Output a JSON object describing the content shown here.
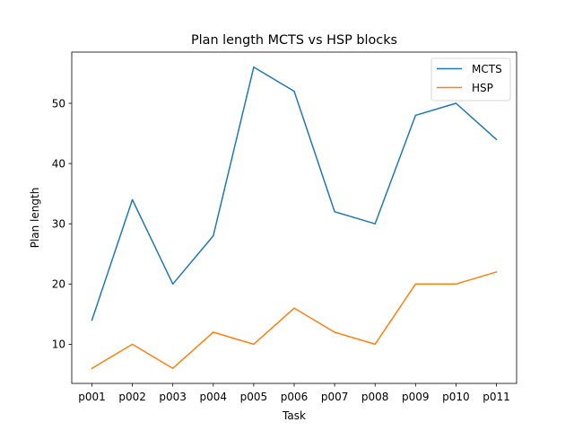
{
  "chart_data": {
    "type": "line",
    "title": "Plan length MCTS vs HSP blocks",
    "xlabel": "Task",
    "ylabel": "Plan length",
    "categories": [
      "p001",
      "p002",
      "p003",
      "p004",
      "p005",
      "p006",
      "p007",
      "p008",
      "p009",
      "p010",
      "p011"
    ],
    "series": [
      {
        "name": "MCTS",
        "color": "#1f77b4",
        "values": [
          14,
          34,
          20,
          28,
          56,
          52,
          32,
          30,
          48,
          50,
          44
        ]
      },
      {
        "name": "HSP",
        "color": "#ff7f0e",
        "values": [
          6,
          10,
          6,
          12,
          10,
          16,
          12,
          10,
          20,
          20,
          22
        ]
      }
    ],
    "ylim": [
      3.5,
      58.5
    ],
    "yticks": [
      10,
      20,
      30,
      40,
      50
    ],
    "grid": false,
    "legend_position": "top-right"
  }
}
